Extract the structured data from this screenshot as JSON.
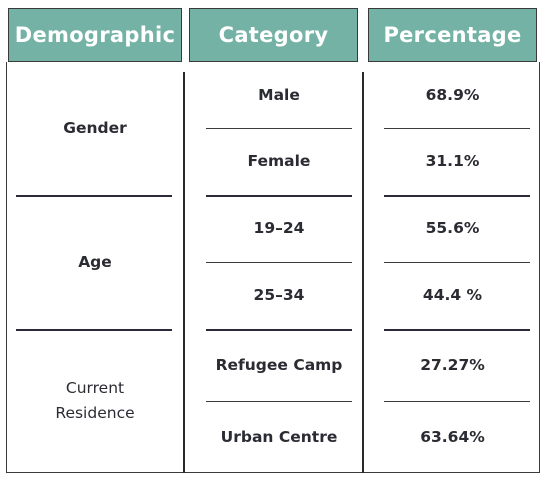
{
  "chart_data": {
    "type": "table",
    "columns": [
      "Demographic",
      "Category",
      "Percentage"
    ],
    "groups": [
      {
        "label": "Gender",
        "rows": [
          {
            "category": "Male",
            "percentage": "68.9%"
          },
          {
            "category": "Female",
            "percentage": "31.1%"
          }
        ]
      },
      {
        "label": "Age",
        "rows": [
          {
            "category": "19–24",
            "percentage": "55.6%"
          },
          {
            "category": "25–34",
            "percentage": "44.4 %"
          }
        ]
      },
      {
        "label": "Current Residence",
        "rows": [
          {
            "category": "Refugee Camp",
            "percentage": "27.27%"
          },
          {
            "category": "Urban Centre",
            "percentage": "63.64%"
          }
        ]
      }
    ]
  },
  "colors": {
    "header_fill": "#73b2a4",
    "header_text": "#ffffff",
    "body_text": "#2b2b33",
    "rule": "#3a3a3a"
  }
}
